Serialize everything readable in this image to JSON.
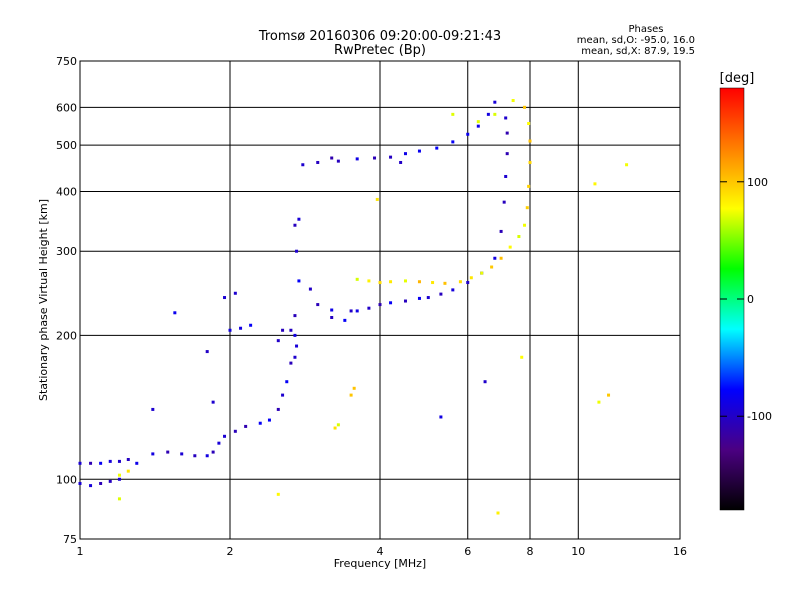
{
  "chart_data": {
    "type": "scatter",
    "title": "Tromsø 20160306 09:20:00-09:21:43",
    "subtitle": "RwPretec (Bp)",
    "xlabel": "Frequency [MHz]",
    "ylabel": "Stationary phase Virtual Height [km]",
    "x_scale": "log2",
    "y_scale": "log",
    "xlim": [
      1,
      16
    ],
    "ylim": [
      75,
      750
    ],
    "xticks": [
      1,
      2,
      4,
      6,
      8,
      10,
      16
    ],
    "yticks": [
      75,
      100,
      200,
      300,
      400,
      500,
      600,
      750
    ],
    "grid": true,
    "phases_note": {
      "title": "Phases",
      "line1": "mean, sd,O: -95.0, 16.0",
      "line2": "mean, sd,X:  87.9, 19.5"
    },
    "colorbar": {
      "label": "[deg]",
      "range": [
        -180,
        180
      ],
      "ticks": [
        100,
        0,
        -100
      ],
      "colors": [
        "#000000",
        "#4b0082",
        "#0000ff",
        "#00ffff",
        "#00ff00",
        "#ffff00",
        "#ff8000",
        "#ff0000"
      ]
    },
    "series": [
      {
        "name": "O",
        "mean_phase": -95.0,
        "sd_phase": 16.0,
        "points": [
          [
            1.0,
            98
          ],
          [
            1.05,
            97
          ],
          [
            1.1,
            98
          ],
          [
            1.15,
            99
          ],
          [
            1.2,
            100
          ],
          [
            1.0,
            108
          ],
          [
            1.05,
            108
          ],
          [
            1.1,
            108
          ],
          [
            1.15,
            109
          ],
          [
            1.2,
            109
          ],
          [
            1.25,
            110
          ],
          [
            1.3,
            108
          ],
          [
            1.4,
            113
          ],
          [
            1.5,
            114
          ],
          [
            1.6,
            113
          ],
          [
            1.7,
            112
          ],
          [
            1.8,
            112
          ],
          [
            1.85,
            114
          ],
          [
            1.9,
            119
          ],
          [
            1.95,
            123
          ],
          [
            2.05,
            126
          ],
          [
            2.15,
            129
          ],
          [
            2.3,
            131
          ],
          [
            2.4,
            133
          ],
          [
            2.5,
            140
          ],
          [
            2.55,
            150
          ],
          [
            2.6,
            160
          ],
          [
            2.65,
            175
          ],
          [
            2.7,
            180
          ],
          [
            2.72,
            190
          ],
          [
            2.7,
            200
          ],
          [
            2.65,
            205
          ],
          [
            2.7,
            220
          ],
          [
            2.75,
            260
          ],
          [
            2.72,
            300
          ],
          [
            2.7,
            340
          ],
          [
            2.75,
            350
          ],
          [
            2.9,
            250
          ],
          [
            3.0,
            232
          ],
          [
            3.2,
            226
          ],
          [
            3.5,
            225
          ],
          [
            3.8,
            228
          ],
          [
            4.0,
            232
          ],
          [
            4.2,
            234
          ],
          [
            4.5,
            236
          ],
          [
            4.8,
            239
          ],
          [
            5.0,
            240
          ],
          [
            5.3,
            244
          ],
          [
            5.6,
            249
          ],
          [
            6.0,
            258
          ],
          [
            6.4,
            270
          ],
          [
            6.8,
            290
          ],
          [
            7.0,
            330
          ],
          [
            7.1,
            380
          ],
          [
            7.15,
            430
          ],
          [
            7.2,
            480
          ],
          [
            7.2,
            530
          ],
          [
            7.15,
            570
          ],
          [
            2.0,
            205
          ],
          [
            2.1,
            207
          ],
          [
            2.2,
            210
          ],
          [
            1.8,
            185
          ],
          [
            1.85,
            145
          ],
          [
            1.95,
            240
          ],
          [
            2.05,
            245
          ],
          [
            1.55,
            223
          ],
          [
            1.4,
            140
          ],
          [
            2.8,
            455
          ],
          [
            3.0,
            460
          ],
          [
            3.3,
            463
          ],
          [
            3.6,
            468
          ],
          [
            3.9,
            470
          ],
          [
            4.2,
            472
          ],
          [
            4.5,
            480
          ],
          [
            4.8,
            486
          ],
          [
            5.2,
            493
          ],
          [
            5.6,
            508
          ],
          [
            6.0,
            527
          ],
          [
            6.3,
            548
          ],
          [
            6.6,
            580
          ],
          [
            6.8,
            615
          ],
          [
            3.2,
            470
          ],
          [
            4.4,
            460
          ],
          [
            2.5,
            195
          ],
          [
            2.55,
            205
          ],
          [
            6.5,
            160
          ],
          [
            5.3,
            135
          ],
          [
            3.6,
            225
          ],
          [
            3.2,
            218
          ],
          [
            3.4,
            215
          ]
        ]
      },
      {
        "name": "X",
        "mean_phase": 87.9,
        "sd_phase": 19.5,
        "points": [
          [
            3.6,
            262
          ],
          [
            3.8,
            260
          ],
          [
            4.0,
            258
          ],
          [
            4.2,
            259
          ],
          [
            4.5,
            260
          ],
          [
            4.8,
            259
          ],
          [
            5.1,
            258
          ],
          [
            5.4,
            257
          ],
          [
            5.8,
            259
          ],
          [
            6.1,
            264
          ],
          [
            6.4,
            270
          ],
          [
            6.7,
            278
          ],
          [
            7.0,
            290
          ],
          [
            7.3,
            306
          ],
          [
            7.6,
            322
          ],
          [
            7.8,
            340
          ],
          [
            7.9,
            370
          ],
          [
            7.95,
            410
          ],
          [
            8.0,
            460
          ],
          [
            8.0,
            510
          ],
          [
            7.95,
            555
          ],
          [
            7.8,
            600
          ],
          [
            7.4,
            620
          ],
          [
            6.8,
            580
          ],
          [
            6.3,
            560
          ],
          [
            3.3,
            130
          ],
          [
            3.25,
            128
          ],
          [
            3.5,
            150
          ],
          [
            3.55,
            155
          ],
          [
            1.2,
            102
          ],
          [
            1.25,
            104
          ],
          [
            1.2,
            91
          ],
          [
            2.5,
            93
          ],
          [
            3.95,
            385
          ],
          [
            5.6,
            580
          ],
          [
            6.9,
            85
          ],
          [
            7.7,
            180
          ],
          [
            10.8,
            415
          ],
          [
            11.5,
            150
          ],
          [
            11.0,
            145
          ],
          [
            12.5,
            455
          ]
        ]
      }
    ]
  }
}
